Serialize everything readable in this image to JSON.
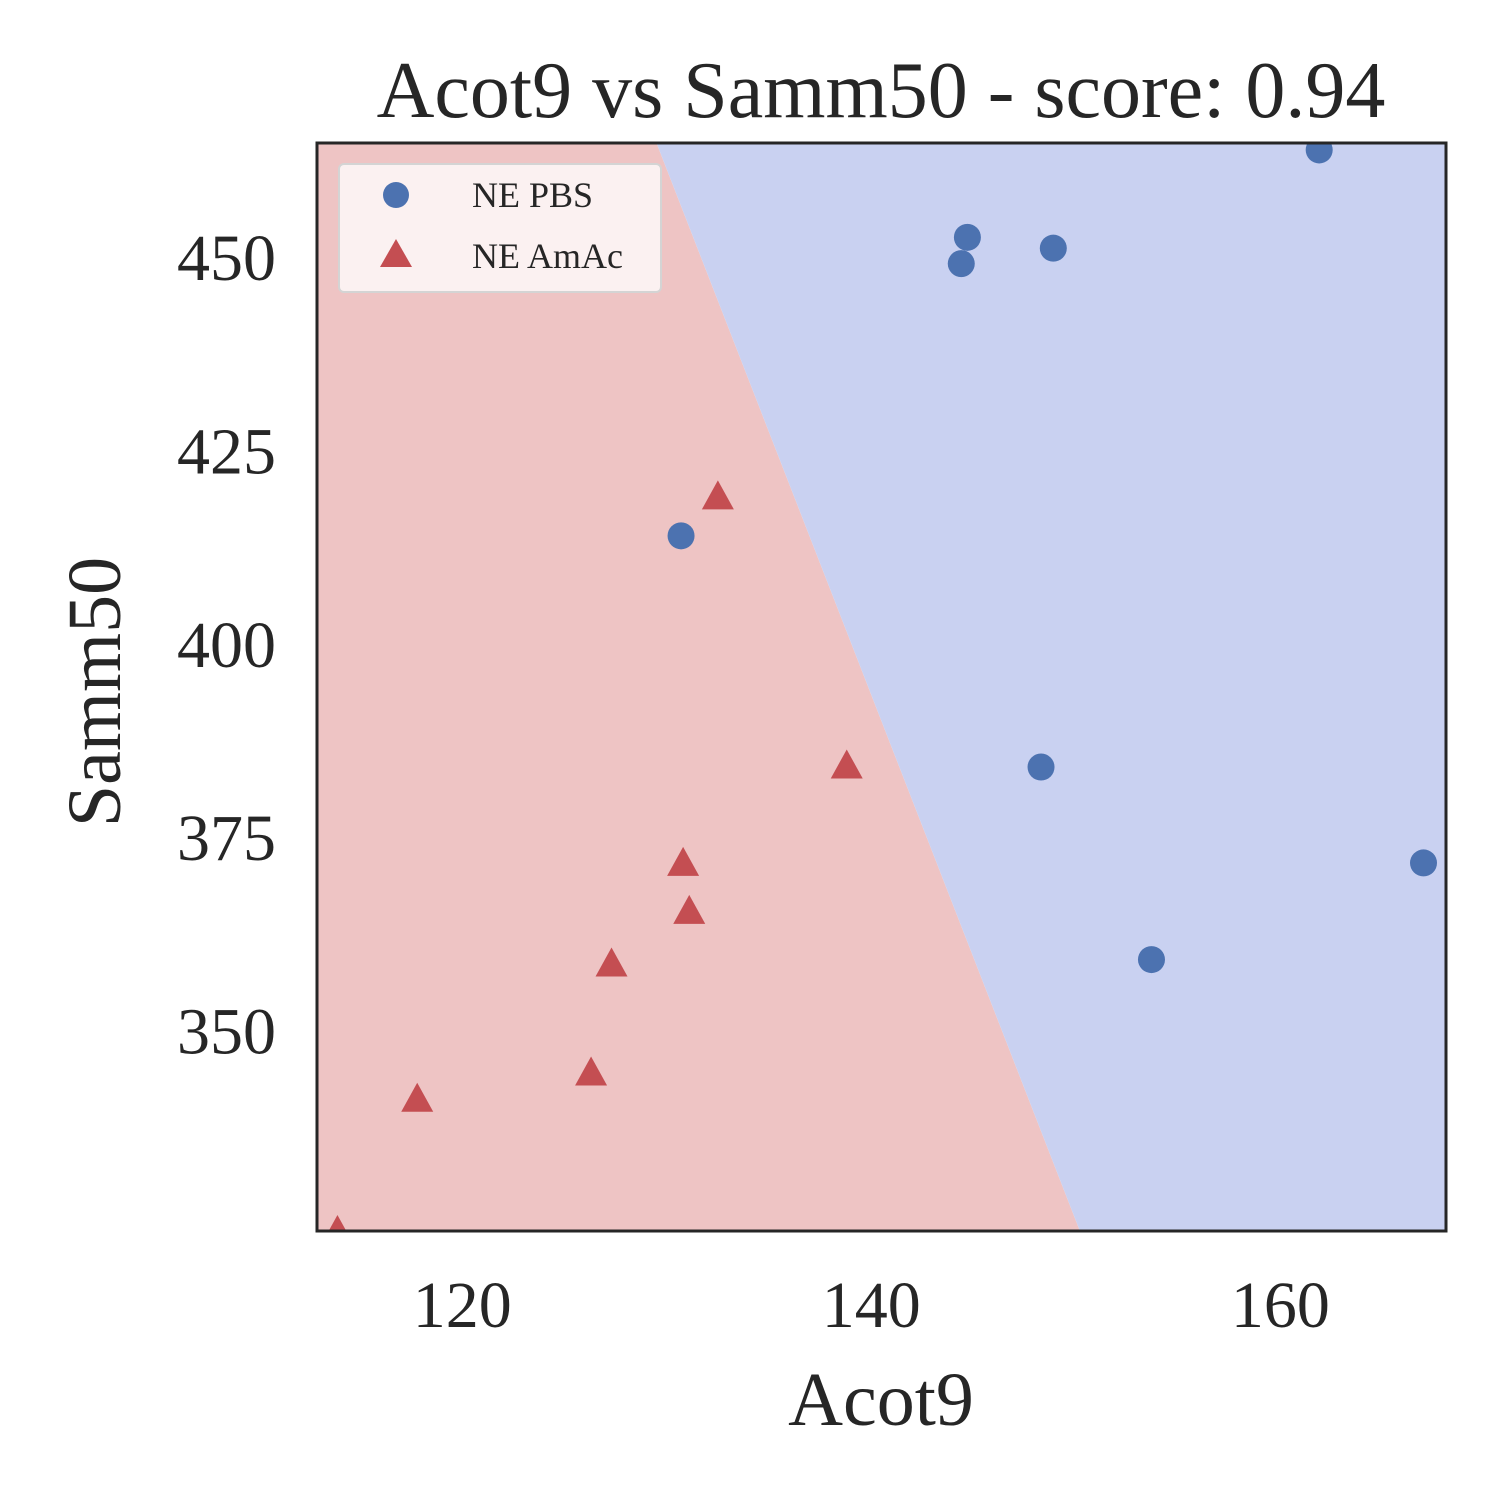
{
  "chart_data": {
    "type": "scatter",
    "title": "Acot9 vs Samm50 - score: 0.94",
    "xlabel": "Acot9",
    "ylabel": "Samm50",
    "xlim": [
      112.9,
      168.1
    ],
    "ylim": [
      324.2,
      464.9
    ],
    "xticks": [
      120,
      140,
      160
    ],
    "yticks": [
      350,
      375,
      400,
      425,
      450
    ],
    "grid": false,
    "legend": {
      "position": "top-left"
    },
    "decision_regions": {
      "boundary": [
        [
          129.5,
          464.9
        ],
        [
          150.2,
          324.2
        ]
      ],
      "left_region": "NE AmAc",
      "right_region": "NE PBS",
      "colors": {
        "NE AmAc": "#eec4c4",
        "NE PBS": "#c9d1f1"
      }
    },
    "series": [
      {
        "name": "NE PBS",
        "marker": "circle",
        "color": "#4c72b0",
        "points": [
          [
            161.9,
            464.0
          ],
          [
            144.7,
            452.7
          ],
          [
            144.4,
            449.3
          ],
          [
            148.9,
            451.3
          ],
          [
            130.7,
            414.1
          ],
          [
            148.3,
            384.2
          ],
          [
            153.7,
            359.3
          ],
          [
            167.0,
            371.8
          ]
        ]
      },
      {
        "name": "NE AmAc",
        "marker": "triangle",
        "color": "#c44e52",
        "points": [
          [
            132.5,
            419.2
          ],
          [
            138.8,
            384.4
          ],
          [
            130.8,
            371.8
          ],
          [
            131.1,
            365.6
          ],
          [
            127.3,
            358.8
          ],
          [
            126.3,
            344.7
          ],
          [
            117.8,
            341.3
          ],
          [
            113.9,
            324.2
          ]
        ]
      }
    ]
  }
}
